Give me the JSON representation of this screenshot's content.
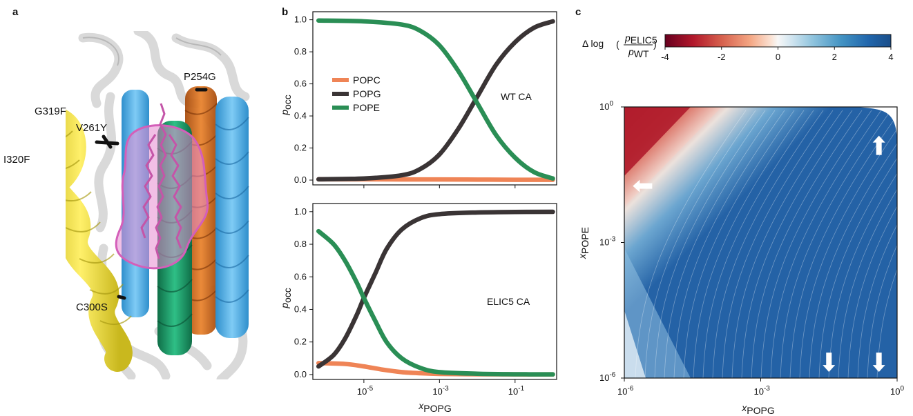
{
  "panels": {
    "a": {
      "letter": "a",
      "residues": [
        "G319F",
        "I320F",
        "V261Y",
        "P254G",
        "C300S"
      ]
    },
    "b": {
      "letter": "b"
    },
    "c": {
      "letter": "c"
    }
  },
  "colors": {
    "POPC": "#ef8456",
    "POPG": "#3a3435",
    "POPE": "#2a8e55",
    "helix_yellow": "#f3e54a",
    "helix_blue": "#56b3ea",
    "helix_orange": "#d86a1a",
    "helix_green": "#1f9a68",
    "lipid_pink": "#e58ad0"
  },
  "chart_data": [
    {
      "type": "line",
      "panel": "b-top",
      "annotation": "WT CA",
      "xlabel_main": "x",
      "xlabel_sub": "POPG",
      "ylabel_main": "p",
      "ylabel_sub": "occ",
      "xscale": "log",
      "xlim_log10": [
        -6.35,
        0.1
      ],
      "ylim": [
        -0.03,
        1.05
      ],
      "yticks": [
        "0.0",
        "0.2",
        "0.4",
        "0.6",
        "0.8",
        "1.0"
      ],
      "legend_position": "center-left",
      "legend": [
        "POPC",
        "POPG",
        "POPE"
      ],
      "series": [
        {
          "name": "POPC",
          "x_log10": [
            -6.2,
            -5,
            -4,
            -3,
            -2,
            -1,
            0
          ],
          "y": [
            0.005,
            0.005,
            0.004,
            0.004,
            0.003,
            0.002,
            0.002
          ]
        },
        {
          "name": "POPG",
          "x_log10": [
            -6.2,
            -5,
            -4,
            -3.5,
            -3,
            -2.5,
            -2,
            -1.5,
            -1,
            -0.5,
            0
          ],
          "y": [
            0.005,
            0.01,
            0.03,
            0.07,
            0.16,
            0.32,
            0.52,
            0.72,
            0.86,
            0.95,
            0.99
          ]
        },
        {
          "name": "POPE",
          "x_log10": [
            -6.2,
            -5,
            -4,
            -3.5,
            -3,
            -2.5,
            -2,
            -1.5,
            -1,
            -0.5,
            0
          ],
          "y": [
            0.995,
            0.99,
            0.97,
            0.93,
            0.84,
            0.68,
            0.48,
            0.28,
            0.14,
            0.05,
            0.01
          ]
        }
      ]
    },
    {
      "type": "line",
      "panel": "b-bottom",
      "annotation": "ELIC5 CA",
      "xlabel_main": "x",
      "xlabel_sub": "POPG",
      "ylabel_main": "p",
      "ylabel_sub": "occ",
      "xscale": "log",
      "xlim_log10": [
        -6.35,
        0.1
      ],
      "ylim": [
        -0.03,
        1.05
      ],
      "yticks": [
        "0.0",
        "0.2",
        "0.4",
        "0.6",
        "0.8",
        "1.0"
      ],
      "xticks": [
        {
          "base": "10",
          "exp": "-5",
          "log10": -5
        },
        {
          "base": "10",
          "exp": "-3",
          "log10": -3
        },
        {
          "base": "10",
          "exp": "-1",
          "log10": -1
        }
      ],
      "series": [
        {
          "name": "POPC",
          "x_log10": [
            -6.2,
            -5.5,
            -5,
            -4.5,
            -4,
            -3.5,
            -3,
            -2,
            -1,
            0
          ],
          "y": [
            0.07,
            0.065,
            0.05,
            0.03,
            0.015,
            0.008,
            0.004,
            0.002,
            0.001,
            0.001
          ]
        },
        {
          "name": "POPG",
          "x_log10": [
            -6.2,
            -5.8,
            -5.5,
            -5.2,
            -5,
            -4.7,
            -4.4,
            -4,
            -3.5,
            -3,
            -2,
            -1,
            0
          ],
          "y": [
            0.05,
            0.12,
            0.22,
            0.36,
            0.47,
            0.62,
            0.77,
            0.89,
            0.96,
            0.985,
            0.995,
            0.998,
            0.999
          ]
        },
        {
          "name": "POPE",
          "x_log10": [
            -6.2,
            -5.8,
            -5.5,
            -5.2,
            -5,
            -4.7,
            -4.4,
            -4,
            -3.5,
            -3,
            -2,
            -1,
            0
          ],
          "y": [
            0.88,
            0.8,
            0.7,
            0.57,
            0.47,
            0.33,
            0.2,
            0.1,
            0.04,
            0.015,
            0.005,
            0.002,
            0.001
          ]
        }
      ]
    },
    {
      "type": "heatmap",
      "panel": "c",
      "colorbar_label_prefix": "Δ log",
      "colorbar_num": "p",
      "colorbar_num_sub": "ELIC5",
      "colorbar_den": "p",
      "colorbar_den_sub": "WT",
      "colorbar_range": [
        -4,
        4
      ],
      "colorbar_ticks": [
        "-4",
        "-2",
        "0",
        "2",
        "4"
      ],
      "colormap": "RdBu",
      "xlabel_main": "x",
      "xlabel_sub": "POPG",
      "ylabel_main": "x",
      "ylabel_sub": "POPE",
      "xscale": "log",
      "yscale": "log",
      "xlim_log10": [
        -6,
        0
      ],
      "ylim_log10": [
        -6,
        0
      ],
      "xticks": [
        {
          "base": "10",
          "exp": "-6",
          "log10": -6
        },
        {
          "base": "10",
          "exp": "-3",
          "log10": -3
        },
        {
          "base": "10",
          "exp": "0",
          "log10": 0
        }
      ],
      "yticks": [
        {
          "base": "10",
          "exp": "0",
          "log10": 0
        },
        {
          "base": "10",
          "exp": "-3",
          "log10": -3
        },
        {
          "base": "10",
          "exp": "-6",
          "log10": -6
        }
      ],
      "arrows": [
        {
          "direction": "left",
          "x_log10": -5.6,
          "y_log10": -1.75
        },
        {
          "direction": "up",
          "x_log10": -0.4,
          "y_log10": -0.85
        },
        {
          "direction": "down",
          "x_log10": -1.5,
          "y_log10": -5.65
        },
        {
          "direction": "down",
          "x_log10": -0.4,
          "y_log10": -5.65
        }
      ]
    }
  ]
}
